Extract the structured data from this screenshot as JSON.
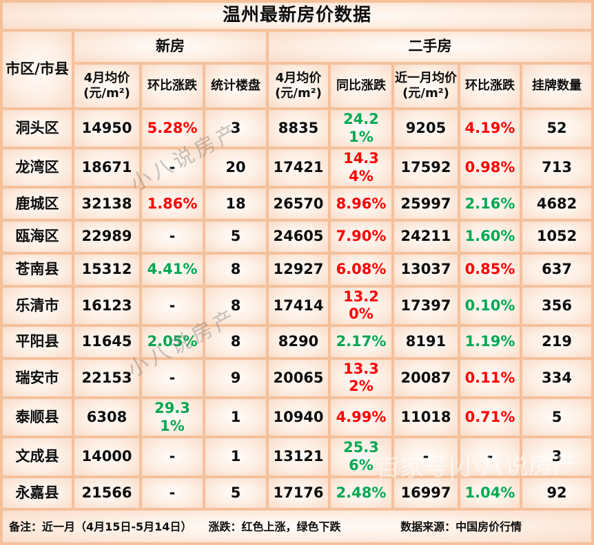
{
  "palette": {
    "red_up": "#fe0000",
    "green_down": "#00a851",
    "grid": "#f4c19c",
    "cell_edge": "#f9dcc9",
    "text": "#0d0d0d",
    "watermark_gray": "rgba(122,122,122,0.42)",
    "watermark_white": "rgba(255,255,255,0.55)"
  },
  "chart_data": {
    "type": "table",
    "title": "温州最新房价数据",
    "column_groups": [
      {
        "label": "新房",
        "span": 3
      },
      {
        "label": "二手房",
        "span": 5
      }
    ],
    "columns": [
      "市区/市县",
      "4月均价(元/m²)",
      "环比涨跌",
      "统计楼盘",
      "4月均价(元/m²)",
      "同比涨跌",
      "近一月均价(元/m²)",
      "环比涨跌",
      "挂牌数量"
    ],
    "rows": [
      {
        "region": "洞头区",
        "values": [
          "14950",
          "5.28%",
          "3",
          "8835",
          "24.21%",
          "9205",
          "4.19%",
          "52"
        ],
        "colors": [
          "k",
          "r",
          "k",
          "k",
          "g",
          "k",
          "r",
          "k"
        ]
      },
      {
        "region": "龙湾区",
        "values": [
          "18671",
          "-",
          "20",
          "17421",
          "14.34%",
          "17592",
          "0.98%",
          "713"
        ],
        "colors": [
          "k",
          "k",
          "k",
          "k",
          "r",
          "k",
          "r",
          "k"
        ]
      },
      {
        "region": "鹿城区",
        "values": [
          "32138",
          "1.86%",
          "18",
          "26570",
          "8.96%",
          "25997",
          "2.16%",
          "4682"
        ],
        "colors": [
          "k",
          "r",
          "k",
          "k",
          "r",
          "k",
          "g",
          "k"
        ]
      },
      {
        "region": "瓯海区",
        "values": [
          "22989",
          "-",
          "5",
          "24605",
          "7.90%",
          "24211",
          "1.60%",
          "1052"
        ],
        "colors": [
          "k",
          "k",
          "k",
          "k",
          "r",
          "k",
          "g",
          "k"
        ]
      },
      {
        "region": "苍南县",
        "values": [
          "15312",
          "4.41%",
          "8",
          "12927",
          "6.08%",
          "13037",
          "0.85%",
          "637"
        ],
        "colors": [
          "k",
          "g",
          "k",
          "k",
          "r",
          "k",
          "r",
          "k"
        ]
      },
      {
        "region": "乐清市",
        "values": [
          "16123",
          "-",
          "8",
          "17414",
          "13.20%",
          "17397",
          "0.10%",
          "356"
        ],
        "colors": [
          "k",
          "k",
          "k",
          "k",
          "r",
          "k",
          "g",
          "k"
        ]
      },
      {
        "region": "平阳县",
        "values": [
          "11645",
          "2.05%",
          "8",
          "8290",
          "2.17%",
          "8191",
          "1.19%",
          "219"
        ],
        "colors": [
          "k",
          "g",
          "k",
          "k",
          "g",
          "k",
          "g",
          "k"
        ]
      },
      {
        "region": "瑞安市",
        "values": [
          "22153",
          "-",
          "9",
          "20065",
          "13.32%",
          "20087",
          "0.11%",
          "334"
        ],
        "colors": [
          "k",
          "k",
          "k",
          "k",
          "r",
          "k",
          "r",
          "k"
        ]
      },
      {
        "region": "泰顺县",
        "values": [
          "6308",
          "29.31%",
          "1",
          "10940",
          "4.99%",
          "11018",
          "0.71%",
          "5"
        ],
        "colors": [
          "k",
          "g",
          "k",
          "k",
          "r",
          "k",
          "r",
          "k"
        ]
      },
      {
        "region": "文成县",
        "values": [
          "14000",
          "-",
          "1",
          "13121",
          "25.36%",
          "-",
          "-",
          "3"
        ],
        "colors": [
          "k",
          "k",
          "k",
          "k",
          "g",
          "k",
          "k",
          "k"
        ]
      },
      {
        "region": "永嘉县",
        "values": [
          "21566",
          "-",
          "5",
          "17176",
          "2.48%",
          "16997",
          "1.04%",
          "92"
        ],
        "colors": [
          "k",
          "k",
          "k",
          "k",
          "g",
          "k",
          "g",
          "k"
        ]
      }
    ]
  },
  "footer": {
    "note": "备注：近一月（4月15日-5月14日）",
    "legend": "涨跌：红色上涨，绿色下跌",
    "source": "数据来源：中国房价行情"
  },
  "watermarks": {
    "diagonal": "小八说房产",
    "bottom": "百家号|小八说房产"
  }
}
